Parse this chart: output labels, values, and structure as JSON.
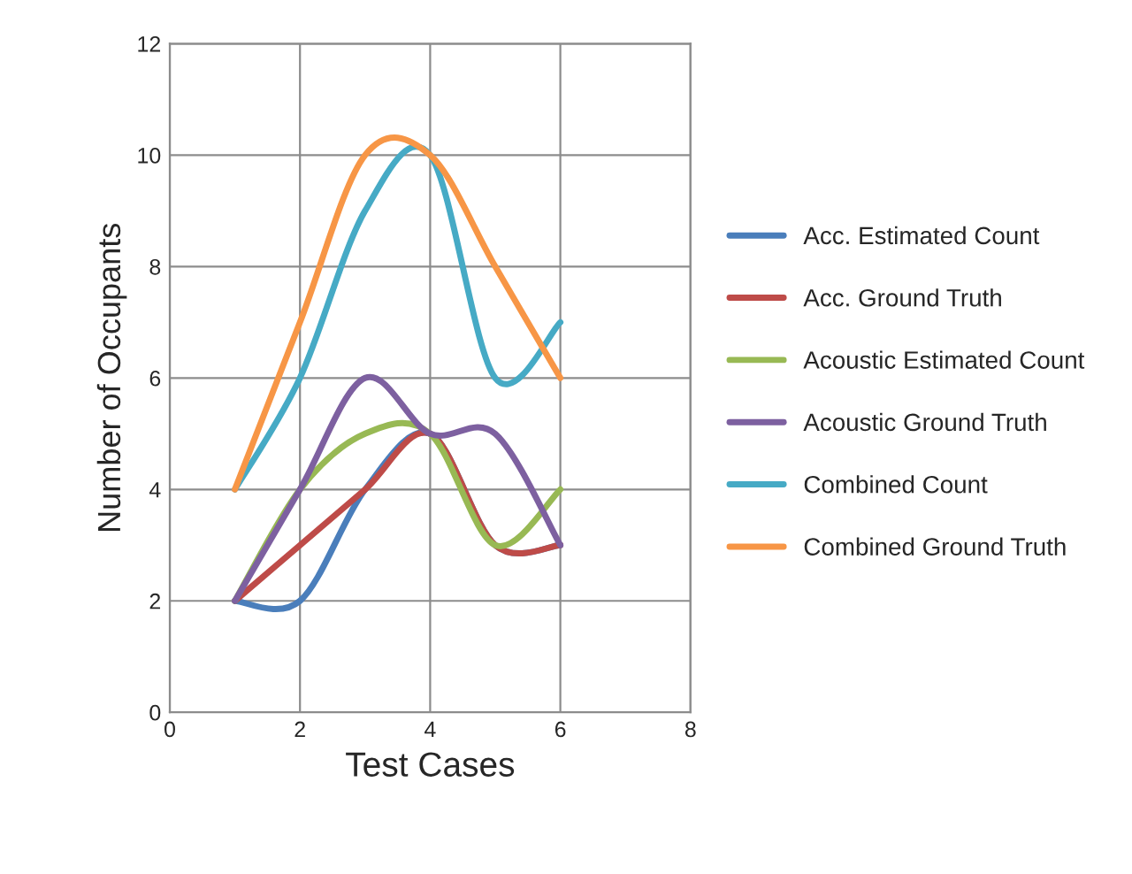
{
  "chart_data": {
    "type": "line",
    "xlabel": "Test Cases",
    "ylabel": "Number of Occupants",
    "x": [
      1,
      2,
      3,
      4,
      5,
      6
    ],
    "series": [
      {
        "name": "Acc. Estimated Count",
        "color": "#4a7ebb",
        "values": [
          2,
          2,
          4,
          5,
          3,
          3
        ]
      },
      {
        "name": "Acc. Ground Truth",
        "color": "#be4b48",
        "values": [
          2,
          3,
          4,
          5,
          3,
          3
        ]
      },
      {
        "name": "Acoustic Estimated Count",
        "color": "#98b954",
        "values": [
          2,
          4,
          5,
          5,
          3,
          4
        ]
      },
      {
        "name": "Acoustic Ground Truth",
        "color": "#7d60a0",
        "values": [
          2,
          4,
          6,
          5,
          5,
          3
        ]
      },
      {
        "name": "Combined Count",
        "color": "#46aac5",
        "values": [
          4,
          6,
          9,
          10,
          6,
          7
        ]
      },
      {
        "name": "Combined Ground Truth",
        "color": "#f79646",
        "values": [
          4,
          7,
          10,
          10,
          8,
          6
        ]
      }
    ],
    "xlim": [
      0,
      8
    ],
    "xticks": [
      0,
      2,
      4,
      6,
      8
    ],
    "ylim": [
      0,
      12
    ],
    "yticks": [
      0,
      2,
      4,
      6,
      8,
      10,
      12
    ],
    "grid": true,
    "legend": "right",
    "marker": "none",
    "line_style": "solid"
  }
}
